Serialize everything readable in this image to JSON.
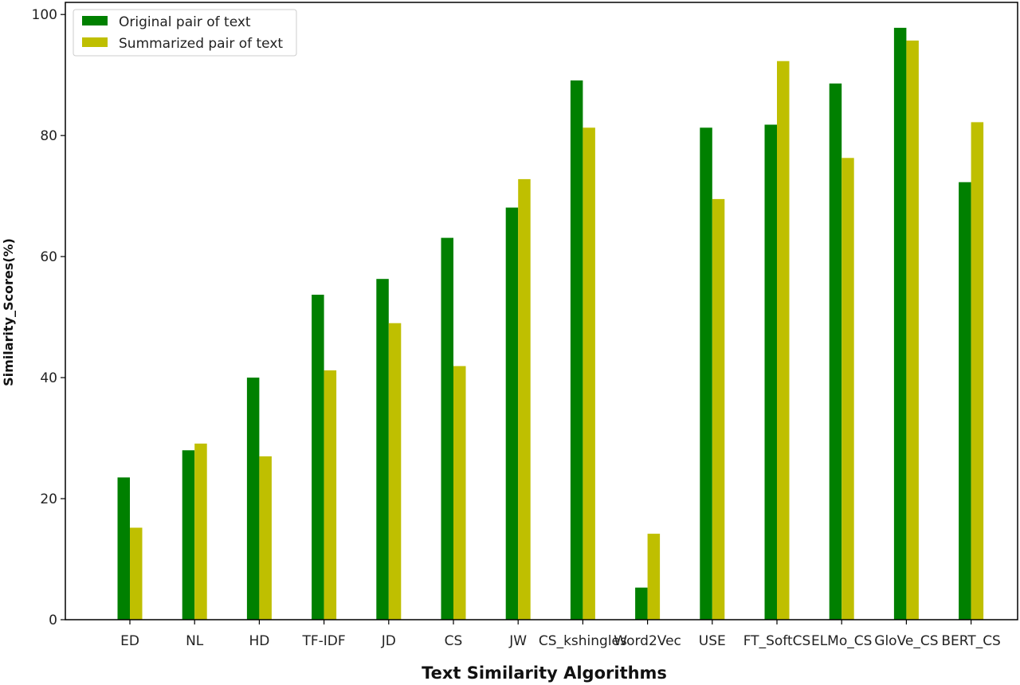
{
  "chart_data": {
    "type": "bar",
    "title": "",
    "xlabel": "Text Similarity Algorithms",
    "ylabel": "Similarity_Scores(%)",
    "ylim": [
      0,
      102
    ],
    "yticks": [
      0,
      20,
      40,
      60,
      80,
      100
    ],
    "grid": false,
    "legend_position": "top-left",
    "categories": [
      "ED",
      "NL",
      "HD",
      "TF-IDF",
      "JD",
      "CS",
      "JW",
      "CS_kshingles",
      "Word2Vec",
      "USE",
      "FT_SoftCS",
      "ELMo_CS",
      "GloVe_CS",
      "BERT_CS"
    ],
    "series": [
      {
        "name": "Original pair of text",
        "color": "#008000",
        "values": [
          23.5,
          28.0,
          40.0,
          53.7,
          56.3,
          63.1,
          68.1,
          89.1,
          5.3,
          81.3,
          81.8,
          88.6,
          97.8,
          72.3
        ]
      },
      {
        "name": "Summarized pair of text",
        "color": "#bfbf00",
        "values": [
          15.2,
          29.1,
          27.0,
          41.2,
          49.0,
          41.9,
          72.8,
          81.3,
          14.2,
          69.5,
          92.3,
          76.3,
          95.7,
          82.2
        ]
      }
    ]
  }
}
